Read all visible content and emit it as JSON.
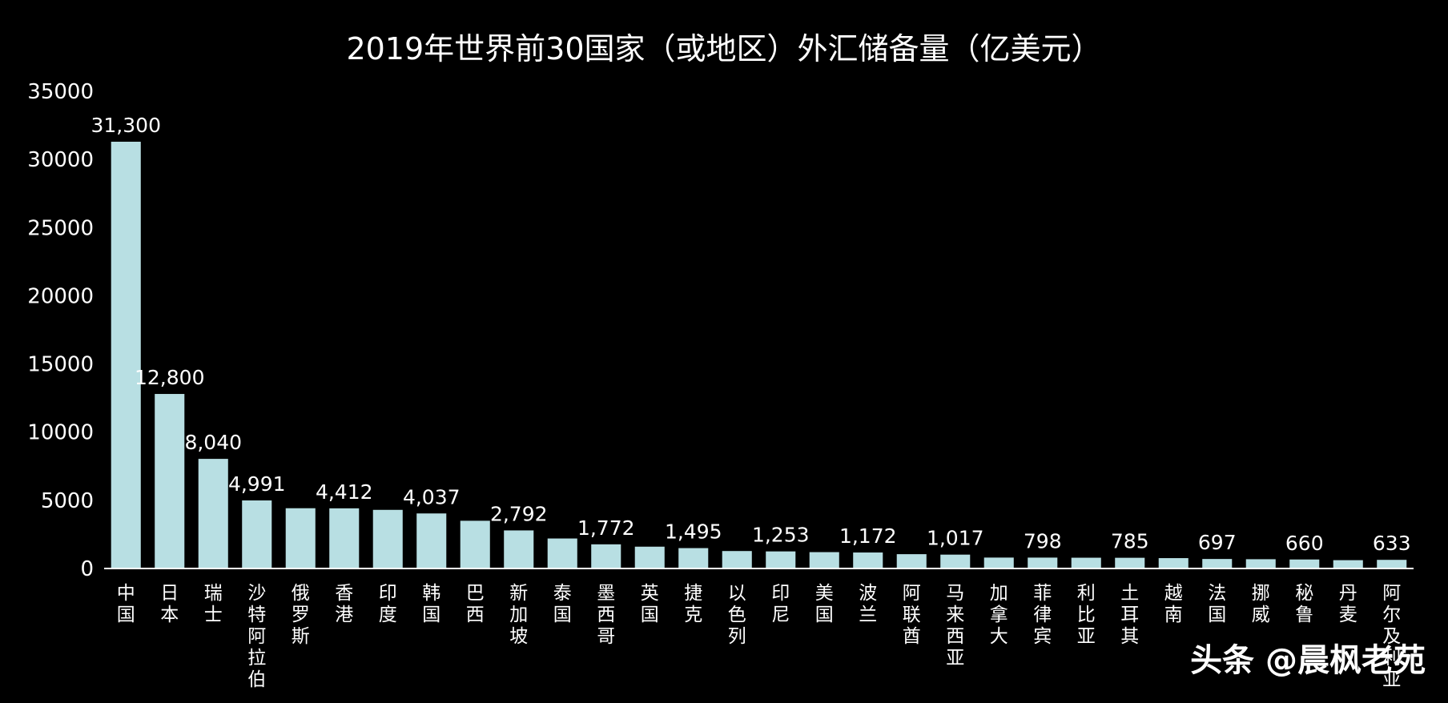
{
  "watermark": "头条 @晨枫老苑",
  "colors": {
    "bar": "#b8dfe3",
    "background": "#000000",
    "text": "#ffffff",
    "axis": "#ffffff"
  },
  "chart_data": {
    "type": "bar",
    "title": "2019年世界前30国家（或地区）外汇储备量（亿美元）",
    "xlabel": "",
    "ylabel": "",
    "ylim": [
      0,
      35000
    ],
    "yticks": [
      0,
      5000,
      10000,
      15000,
      20000,
      25000,
      30000,
      35000
    ],
    "grid": false,
    "categories": [
      "中国",
      "日本",
      "瑞士",
      "沙特阿拉伯",
      "俄罗斯",
      "香港",
      "印度",
      "韩国",
      "巴西",
      "新加坡",
      "泰国",
      "墨西哥",
      "英国",
      "捷克",
      "以色列",
      "印尼",
      "美国",
      "波兰",
      "阿联酋",
      "马来西亚",
      "加拿大",
      "菲律宾",
      "利比亚",
      "土耳其",
      "越南",
      "法国",
      "挪威",
      "秘鲁",
      "丹麦",
      "阿尔及利亚"
    ],
    "values": [
      31300,
      12800,
      8040,
      4991,
      4420,
      4412,
      4300,
      4037,
      3500,
      2792,
      2200,
      1772,
      1600,
      1495,
      1280,
      1253,
      1200,
      1172,
      1050,
      1017,
      800,
      798,
      790,
      785,
      760,
      697,
      680,
      660,
      610,
      633
    ],
    "data_labels": [
      "31,300",
      "12,800",
      "8,040",
      "4,991",
      "",
      "4,412",
      "",
      "4,037",
      "",
      "2,792",
      "",
      "1,772",
      "",
      "1,495",
      "",
      "1,253",
      "",
      "1,172",
      "",
      "1,017",
      "",
      "798",
      "",
      "785",
      "",
      "697",
      "",
      "660",
      "",
      "633"
    ]
  }
}
